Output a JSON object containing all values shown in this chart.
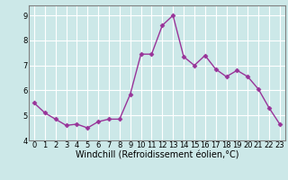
{
  "x": [
    0,
    1,
    2,
    3,
    4,
    5,
    6,
    7,
    8,
    9,
    10,
    11,
    12,
    13,
    14,
    15,
    16,
    17,
    18,
    19,
    20,
    21,
    22,
    23
  ],
  "y": [
    5.5,
    5.1,
    4.85,
    4.6,
    4.65,
    4.5,
    4.75,
    4.85,
    4.85,
    5.85,
    7.45,
    7.45,
    8.6,
    9.0,
    7.35,
    7.0,
    7.4,
    6.85,
    6.55,
    6.8,
    6.55,
    6.05,
    5.3,
    4.65
  ],
  "line_color": "#993399",
  "marker": "D",
  "marker_size": 2.5,
  "bg_color": "#cce8e8",
  "grid_color": "#ffffff",
  "xlabel": "Windchill (Refroidissement éolien,°C)",
  "ylim": [
    4.0,
    9.4
  ],
  "xlim": [
    -0.5,
    23.5
  ],
  "yticks": [
    4,
    5,
    6,
    7,
    8,
    9
  ],
  "xticks": [
    0,
    1,
    2,
    3,
    4,
    5,
    6,
    7,
    8,
    9,
    10,
    11,
    12,
    13,
    14,
    15,
    16,
    17,
    18,
    19,
    20,
    21,
    22,
    23
  ],
  "tick_fontsize": 6,
  "xlabel_fontsize": 7,
  "spine_color": "#808080",
  "line_width": 1.0
}
